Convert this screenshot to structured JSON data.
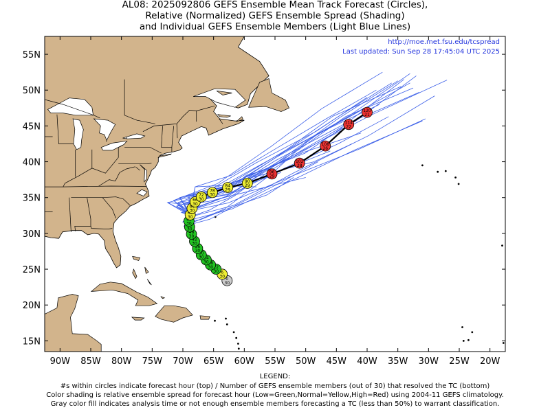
{
  "title": {
    "line1": "AL08: 2025092806 GEFS Ensemble Mean Track Forecast (Circles),",
    "line2": "Relative (Normalized) GEFS Ensemble Spread (Shading)",
    "line3": "and Individual GEFS Ensemble Members (Light Blue Lines)"
  },
  "header_right": {
    "url": "http://moe.met.fsu.edu/tcspread",
    "updated": "Last updated: Sun Sep 28 17:45:04 UTC 2025"
  },
  "axes": {
    "lon_range": [
      -92.5,
      -17.5
    ],
    "lat_range": [
      13.5,
      57.5
    ],
    "lat_ticks": [
      "55N",
      "50N",
      "45N",
      "40N",
      "35N",
      "30N",
      "25N",
      "20N",
      "15N"
    ],
    "lat_values": [
      55,
      50,
      45,
      40,
      35,
      30,
      25,
      20,
      15
    ],
    "lon_ticks": [
      "90W",
      "85W",
      "80W",
      "75W",
      "70W",
      "65W",
      "60W",
      "55W",
      "50W",
      "45W",
      "40W",
      "35W",
      "30W",
      "25W",
      "20W"
    ],
    "lon_values": [
      -90,
      -85,
      -80,
      -75,
      -70,
      -65,
      -60,
      -55,
      -50,
      -45,
      -40,
      -35,
      -30,
      -25,
      -20
    ]
  },
  "colors": {
    "land": "#d2b48c",
    "ocean": "#ffffff",
    "member_track": "#3a5ee8",
    "mean_track": "#000000",
    "spread_low": "#22c422",
    "spread_normal": "#eeee33",
    "spread_high": "#ee3333",
    "gray_fill": "#cccccc",
    "header_text": "#2233dd"
  },
  "mean_track_points": [
    {
      "lon": -62.8,
      "lat": 23.4,
      "hour": "0",
      "members": "30",
      "class": "gray"
    },
    {
      "lon": -63.6,
      "lat": 24.3,
      "hour": "6",
      "members": "30",
      "class": "normal"
    },
    {
      "lon": -64.6,
      "lat": 25.0,
      "hour": "12",
      "members": "30",
      "class": "low"
    },
    {
      "lon": -65.5,
      "lat": 25.6,
      "hour": "18",
      "members": "30",
      "class": "low"
    },
    {
      "lon": -66.2,
      "lat": 26.3,
      "hour": "24",
      "members": "30",
      "class": "low"
    },
    {
      "lon": -67.0,
      "lat": 27.0,
      "hour": "30",
      "members": "30",
      "class": "low"
    },
    {
      "lon": -67.6,
      "lat": 27.9,
      "hour": "36",
      "members": "30",
      "class": "low"
    },
    {
      "lon": -68.1,
      "lat": 28.9,
      "hour": "42",
      "members": "30",
      "class": "low"
    },
    {
      "lon": -68.6,
      "lat": 29.9,
      "hour": "48",
      "members": "30",
      "class": "low"
    },
    {
      "lon": -68.9,
      "lat": 30.9,
      "hour": "54",
      "members": "30",
      "class": "low"
    },
    {
      "lon": -69.0,
      "lat": 31.7,
      "hour": "60",
      "members": "30",
      "class": "low"
    },
    {
      "lon": -68.8,
      "lat": 32.6,
      "hour": "66",
      "members": "30",
      "class": "normal"
    },
    {
      "lon": -68.5,
      "lat": 33.5,
      "hour": "66",
      "members": "30",
      "class": "normal"
    },
    {
      "lon": -68.0,
      "lat": 34.4,
      "hour": "66",
      "members": "30",
      "class": "normal"
    },
    {
      "lon": -67.0,
      "lat": 35.1,
      "hour": "72",
      "members": "30",
      "class": "normal"
    },
    {
      "lon": -65.2,
      "lat": 35.7,
      "hour": "78",
      "members": "30",
      "class": "normal"
    },
    {
      "lon": -62.7,
      "lat": 36.4,
      "hour": "84",
      "members": "29",
      "class": "normal"
    },
    {
      "lon": -59.5,
      "lat": 37.0,
      "hour": "90",
      "members": "29",
      "class": "normal"
    },
    {
      "lon": -55.5,
      "lat": 38.3,
      "hour": "96",
      "members": "29",
      "class": "high"
    },
    {
      "lon": -51.0,
      "lat": 39.8,
      "hour": "102",
      "members": "28",
      "class": "high"
    },
    {
      "lon": -46.8,
      "lat": 42.2,
      "hour": "108",
      "members": "26",
      "class": "high"
    },
    {
      "lon": -43.0,
      "lat": 45.2,
      "hour": "114",
      "members": "22",
      "class": "high"
    },
    {
      "lon": -40.0,
      "lat": 46.9,
      "hour": "120",
      "members": "21",
      "class": "high"
    }
  ],
  "legend": {
    "title": "LEGEND:",
    "line1": "#s within circles indicate forecast hour (top) / Number of GEFS ensemble members (out of 30) that resolved the TC (bottom)",
    "line2": "Color shading is relative ensemble spread for forecast hour (Low=Green,Normal=Yellow,High=Red) using 2004-11 GEFS climatology.",
    "line3": "Gray color fill indicates analysis time or not enough ensemble members forecasting a TC (less than 50%) to warrant classification."
  }
}
